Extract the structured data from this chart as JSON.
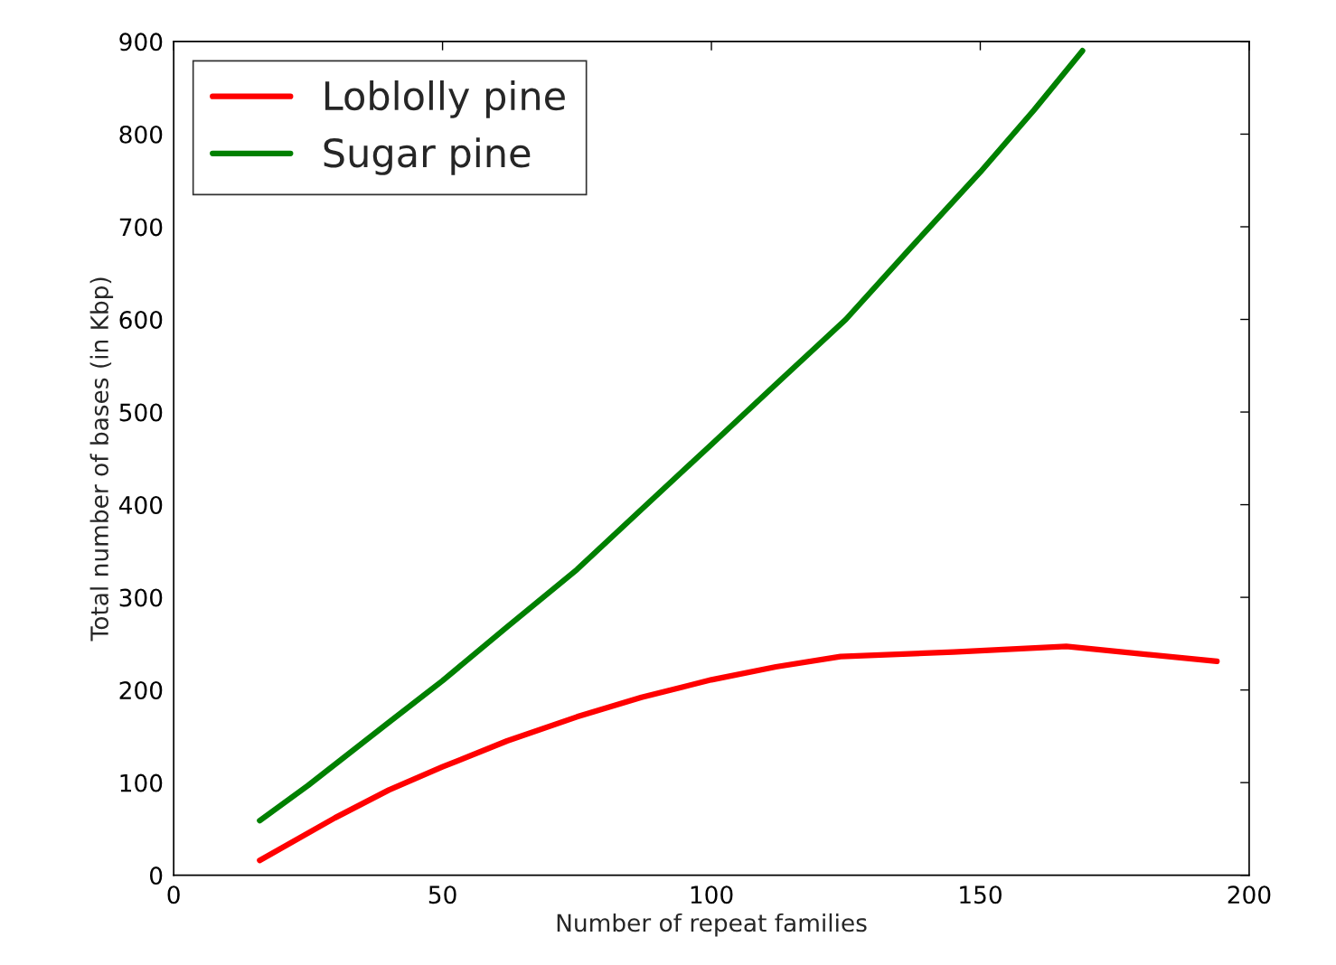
{
  "chart_data": {
    "type": "line",
    "xlabel": "Number of repeat families",
    "ylabel": "Total number of bases (in Kbp)",
    "xlim": [
      0,
      200
    ],
    "xticks": [
      0,
      50,
      100,
      150,
      200
    ],
    "ylim": [
      0,
      900
    ],
    "yticks": [
      0,
      100,
      200,
      300,
      400,
      500,
      600,
      700,
      800,
      900
    ],
    "grid": false,
    "legend": "top left",
    "marker": "none",
    "line_style": "solid",
    "series": [
      {
        "name": "Loblolly pine",
        "color": "#ff0000",
        "x": [
          16,
          30,
          40,
          50,
          62,
          75,
          87,
          100,
          112,
          124,
          145,
          166,
          194
        ],
        "values": [
          16,
          62,
          92,
          117,
          145,
          171,
          192,
          211,
          225,
          236,
          241,
          247,
          231
        ]
      },
      {
        "name": "Sugar pine",
        "color": "#008000",
        "x": [
          16,
          25,
          40,
          50,
          62,
          75,
          87,
          100,
          112,
          125,
          137,
          150,
          160,
          169
        ],
        "values": [
          59,
          97,
          165,
          210,
          268,
          330,
          395,
          465,
          530,
          600,
          677,
          759,
          826,
          890
        ]
      }
    ]
  }
}
